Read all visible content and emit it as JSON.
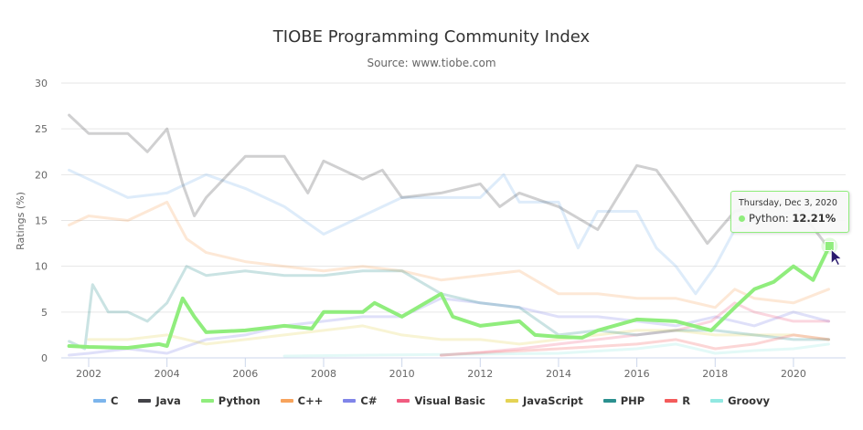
{
  "chart_data": {
    "type": "line",
    "title": "TIOBE Programming Community Index",
    "subtitle": "Source: www.tiobe.com",
    "ylabel": "Ratings (%)",
    "xlabel": "",
    "xlim": [
      2001.5,
      2021.2
    ],
    "ylim": [
      0,
      30
    ],
    "x_ticks": [
      "2002",
      "2004",
      "2006",
      "2008",
      "2010",
      "2012",
      "2014",
      "2016",
      "2018",
      "2020"
    ],
    "y_ticks": [
      "0",
      "5",
      "10",
      "15",
      "20",
      "25",
      "30"
    ],
    "grid": "horizontal",
    "legend": "bottom",
    "highlighted_series": "Python",
    "series": [
      {
        "name": "C",
        "color": "#7cb5ec",
        "points": [
          [
            2001.5,
            20.5
          ],
          [
            2002,
            19.5
          ],
          [
            2003,
            17.5
          ],
          [
            2004,
            18
          ],
          [
            2005,
            20
          ],
          [
            2006,
            18.5
          ],
          [
            2007,
            16.5
          ],
          [
            2008,
            13.5
          ],
          [
            2009,
            15.5
          ],
          [
            2010,
            17.5
          ],
          [
            2011,
            17.5
          ],
          [
            2012,
            17.5
          ],
          [
            2012.6,
            20
          ],
          [
            2013,
            17
          ],
          [
            2014,
            17
          ],
          [
            2014.5,
            12
          ],
          [
            2015,
            16
          ],
          [
            2016,
            16
          ],
          [
            2016.5,
            12
          ],
          [
            2017,
            10
          ],
          [
            2017.5,
            7
          ],
          [
            2018,
            10
          ],
          [
            2018.5,
            14
          ],
          [
            2019,
            15
          ],
          [
            2020,
            16
          ],
          [
            2020.9,
            16
          ]
        ]
      },
      {
        "name": "Java",
        "color": "#434348",
        "points": [
          [
            2001.5,
            26.5
          ],
          [
            2002,
            24.5
          ],
          [
            2003,
            24.5
          ],
          [
            2003.5,
            22.5
          ],
          [
            2004,
            25
          ],
          [
            2004.4,
            19
          ],
          [
            2004.7,
            15.5
          ],
          [
            2005,
            17.5
          ],
          [
            2006,
            22
          ],
          [
            2007,
            22
          ],
          [
            2007.6,
            18
          ],
          [
            2008,
            21.5
          ],
          [
            2009,
            19.5
          ],
          [
            2009.5,
            20.5
          ],
          [
            2010,
            17.5
          ],
          [
            2011,
            18
          ],
          [
            2012,
            19
          ],
          [
            2012.5,
            16.5
          ],
          [
            2013,
            18
          ],
          [
            2014,
            16.5
          ],
          [
            2015,
            14
          ],
          [
            2016,
            21
          ],
          [
            2016.5,
            20.5
          ],
          [
            2017,
            17.5
          ],
          [
            2017.8,
            12.5
          ],
          [
            2018.5,
            16
          ],
          [
            2019,
            16.5
          ],
          [
            2020,
            17
          ],
          [
            2020.9,
            12
          ]
        ]
      },
      {
        "name": "Python",
        "color": "#90ed7d",
        "points": [
          [
            2001.5,
            1.3
          ],
          [
            2002,
            1.2
          ],
          [
            2003,
            1.1
          ],
          [
            2003.8,
            1.5
          ],
          [
            2004,
            1.3
          ],
          [
            2004.4,
            6.5
          ],
          [
            2004.7,
            4.5
          ],
          [
            2005,
            2.8
          ],
          [
            2006,
            3
          ],
          [
            2007,
            3.5
          ],
          [
            2007.7,
            3.2
          ],
          [
            2008,
            5
          ],
          [
            2009,
            5
          ],
          [
            2009.3,
            6
          ],
          [
            2010,
            4.5
          ],
          [
            2011,
            7
          ],
          [
            2011.3,
            4.5
          ],
          [
            2012,
            3.5
          ],
          [
            2013,
            4
          ],
          [
            2013.4,
            2.5
          ],
          [
            2014,
            2.3
          ],
          [
            2014.6,
            2.2
          ],
          [
            2015,
            3
          ],
          [
            2016,
            4.2
          ],
          [
            2017,
            4
          ],
          [
            2017.9,
            3
          ],
          [
            2018.5,
            5.5
          ],
          [
            2019,
            7.5
          ],
          [
            2019.5,
            8.3
          ],
          [
            2020,
            10
          ],
          [
            2020.5,
            8.5
          ],
          [
            2020.92,
            12.21
          ]
        ]
      },
      {
        "name": "C++",
        "color": "#f7a35c",
        "points": [
          [
            2001.5,
            14.5
          ],
          [
            2002,
            15.5
          ],
          [
            2003,
            15
          ],
          [
            2004,
            17
          ],
          [
            2004.5,
            13
          ],
          [
            2005,
            11.5
          ],
          [
            2006,
            10.5
          ],
          [
            2007,
            10
          ],
          [
            2008,
            9.5
          ],
          [
            2009,
            10
          ],
          [
            2010,
            9.5
          ],
          [
            2011,
            8.5
          ],
          [
            2012,
            9
          ],
          [
            2013,
            9.5
          ],
          [
            2014,
            7
          ],
          [
            2015,
            7
          ],
          [
            2016,
            6.5
          ],
          [
            2017,
            6.5
          ],
          [
            2018,
            5.5
          ],
          [
            2018.5,
            7.5
          ],
          [
            2019,
            6.5
          ],
          [
            2020,
            6
          ],
          [
            2020.9,
            7.5
          ]
        ]
      },
      {
        "name": "C#",
        "color": "#8085e9",
        "points": [
          [
            2001.5,
            0.3
          ],
          [
            2002,
            0.5
          ],
          [
            2003,
            1
          ],
          [
            2004,
            0.5
          ],
          [
            2005,
            2
          ],
          [
            2006,
            2.5
          ],
          [
            2007,
            3.5
          ],
          [
            2008,
            4
          ],
          [
            2009,
            4.5
          ],
          [
            2010,
            4.5
          ],
          [
            2011,
            6.5
          ],
          [
            2012,
            6
          ],
          [
            2013,
            5.5
          ],
          [
            2014,
            4.5
          ],
          [
            2015,
            4.5
          ],
          [
            2016,
            4
          ],
          [
            2017,
            3.5
          ],
          [
            2018,
            4.5
          ],
          [
            2019,
            3.5
          ],
          [
            2020,
            5
          ],
          [
            2020.9,
            4
          ]
        ]
      },
      {
        "name": "Visual Basic",
        "color": "#f15c80",
        "points": [
          [
            2011,
            0.3
          ],
          [
            2012,
            0.6
          ],
          [
            2013,
            1
          ],
          [
            2014,
            1.5
          ],
          [
            2015,
            2
          ],
          [
            2016,
            2.5
          ],
          [
            2017,
            3
          ],
          [
            2017.9,
            4
          ],
          [
            2018.5,
            6
          ],
          [
            2019,
            5
          ],
          [
            2020,
            4
          ],
          [
            2020.9,
            4
          ]
        ]
      },
      {
        "name": "JavaScript",
        "color": "#e4d354",
        "points": [
          [
            2002,
            2
          ],
          [
            2003,
            2
          ],
          [
            2004,
            2.5
          ],
          [
            2005,
            1.5
          ],
          [
            2006,
            2
          ],
          [
            2007,
            2.5
          ],
          [
            2008,
            3
          ],
          [
            2009,
            3.5
          ],
          [
            2010,
            2.5
          ],
          [
            2011,
            2
          ],
          [
            2012,
            2
          ],
          [
            2013,
            1.5
          ],
          [
            2014,
            2
          ],
          [
            2015,
            2.5
          ],
          [
            2016,
            3
          ],
          [
            2017,
            3
          ],
          [
            2018,
            2.5
          ],
          [
            2019,
            2.5
          ],
          [
            2020,
            2.5
          ],
          [
            2020.9,
            2
          ]
        ]
      },
      {
        "name": "PHP",
        "color": "#2b908f",
        "points": [
          [
            2001.5,
            1.8
          ],
          [
            2001.9,
            1
          ],
          [
            2002.1,
            8
          ],
          [
            2002.5,
            5
          ],
          [
            2003,
            5
          ],
          [
            2003.5,
            4
          ],
          [
            2004,
            6
          ],
          [
            2004.5,
            10
          ],
          [
            2005,
            9
          ],
          [
            2006,
            9.5
          ],
          [
            2007,
            9
          ],
          [
            2008,
            9
          ],
          [
            2009,
            9.5
          ],
          [
            2010,
            9.5
          ],
          [
            2011,
            7
          ],
          [
            2012,
            6
          ],
          [
            2013,
            5.5
          ],
          [
            2014,
            2.5
          ],
          [
            2015,
            3
          ],
          [
            2016,
            2.5
          ],
          [
            2017,
            3
          ],
          [
            2018,
            3
          ],
          [
            2019,
            2.5
          ],
          [
            2020,
            2
          ],
          [
            2020.9,
            2
          ]
        ]
      },
      {
        "name": "R",
        "color": "#f45b5b",
        "points": [
          [
            2011,
            0.3
          ],
          [
            2014,
            1
          ],
          [
            2016,
            1.5
          ],
          [
            2017,
            2
          ],
          [
            2018,
            1
          ],
          [
            2019,
            1.5
          ],
          [
            2020,
            2.5
          ],
          [
            2020.9,
            2
          ]
        ]
      },
      {
        "name": "Groovy",
        "color": "#91e8e1",
        "points": [
          [
            2007,
            0.2
          ],
          [
            2014,
            0.5
          ],
          [
            2016,
            1
          ],
          [
            2017,
            1.5
          ],
          [
            2018,
            0.5
          ],
          [
            2019,
            0.8
          ],
          [
            2020,
            1
          ],
          [
            2020.9,
            1.5
          ]
        ]
      }
    ],
    "tooltip": {
      "date": "Thursday, Dec 3, 2020",
      "series": "Python",
      "label": "Python: ",
      "value": "12.21%"
    }
  }
}
